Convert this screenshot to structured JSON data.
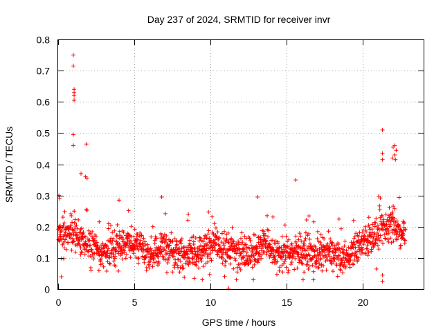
{
  "chart_data": {
    "type": "scatter",
    "title": "Day 237 of 2024, SRMTID for receiver invr",
    "xlabel": "GPS time / hours",
    "ylabel": "SRMTID / TECUs",
    "xlim": [
      0,
      24
    ],
    "ylim": [
      0,
      0.8
    ],
    "x_ticks": [
      0,
      5,
      10,
      15,
      20
    ],
    "x_tick_labels": [
      "0",
      "5",
      "10",
      "15",
      "20"
    ],
    "y_ticks": [
      0,
      0.1,
      0.2,
      0.3,
      0.4,
      0.5,
      0.6,
      0.7,
      0.8
    ],
    "y_tick_labels": [
      "0",
      "0.1",
      "0.2",
      "0.3",
      "0.4",
      "0.5",
      "0.6",
      "0.7",
      "0.8"
    ],
    "grid": true,
    "marker": "+",
    "color": "#ff0000",
    "baseline": [
      [
        0.0,
        0.17
      ],
      [
        0.5,
        0.18
      ],
      [
        1.0,
        0.17
      ],
      [
        1.5,
        0.16
      ],
      [
        2.0,
        0.15
      ],
      [
        2.5,
        0.13
      ],
      [
        3.0,
        0.11
      ],
      [
        3.5,
        0.13
      ],
      [
        4.0,
        0.14
      ],
      [
        4.5,
        0.15
      ],
      [
        5.0,
        0.15
      ],
      [
        5.5,
        0.14
      ],
      [
        6.0,
        0.1
      ],
      [
        6.5,
        0.12
      ],
      [
        7.0,
        0.14
      ],
      [
        7.5,
        0.12
      ],
      [
        8.0,
        0.11
      ],
      [
        8.5,
        0.12
      ],
      [
        9.0,
        0.11
      ],
      [
        9.5,
        0.13
      ],
      [
        10.0,
        0.14
      ],
      [
        10.5,
        0.15
      ],
      [
        11.0,
        0.12
      ],
      [
        11.5,
        0.13
      ],
      [
        12.0,
        0.13
      ],
      [
        12.5,
        0.12
      ],
      [
        13.0,
        0.12
      ],
      [
        13.5,
        0.15
      ],
      [
        14.0,
        0.13
      ],
      [
        14.5,
        0.11
      ],
      [
        15.0,
        0.11
      ],
      [
        15.5,
        0.12
      ],
      [
        16.0,
        0.12
      ],
      [
        16.5,
        0.12
      ],
      [
        17.0,
        0.11
      ],
      [
        17.5,
        0.11
      ],
      [
        18.0,
        0.12
      ],
      [
        18.5,
        0.1
      ],
      [
        19.0,
        0.1
      ],
      [
        19.5,
        0.13
      ],
      [
        20.0,
        0.15
      ],
      [
        20.5,
        0.16
      ],
      [
        21.0,
        0.17
      ],
      [
        21.5,
        0.2
      ],
      [
        22.0,
        0.22
      ],
      [
        22.5,
        0.17
      ],
      [
        22.8,
        0.18
      ]
    ],
    "highlight_points": [
      [
        1.0,
        0.75
      ],
      [
        1.0,
        0.715
      ],
      [
        1.05,
        0.64
      ],
      [
        1.05,
        0.63
      ],
      [
        1.05,
        0.62
      ],
      [
        1.05,
        0.605
      ],
      [
        1.0,
        0.495
      ],
      [
        1.0,
        0.46
      ],
      [
        1.85,
        0.465
      ],
      [
        1.5,
        0.37
      ],
      [
        1.8,
        0.36
      ],
      [
        1.9,
        0.355
      ],
      [
        21.3,
        0.51
      ],
      [
        21.3,
        0.435
      ],
      [
        21.3,
        0.415
      ],
      [
        22.1,
        0.46
      ],
      [
        22.0,
        0.455
      ],
      [
        22.2,
        0.445
      ],
      [
        22.1,
        0.43
      ],
      [
        21.95,
        0.42
      ],
      [
        22.15,
        0.415
      ],
      [
        15.6,
        0.35
      ],
      [
        13.1,
        0.295
      ],
      [
        21.3,
        0.045
      ],
      [
        21.3,
        0.025
      ],
      [
        0.05,
        0.3
      ],
      [
        0.1,
        0.29
      ],
      [
        4.0,
        0.285
      ],
      [
        6.8,
        0.295
      ],
      [
        8.55,
        0.24
      ],
      [
        19.4,
        0.22
      ],
      [
        20.4,
        0.23
      ],
      [
        11.2,
        0.003
      ]
    ]
  }
}
